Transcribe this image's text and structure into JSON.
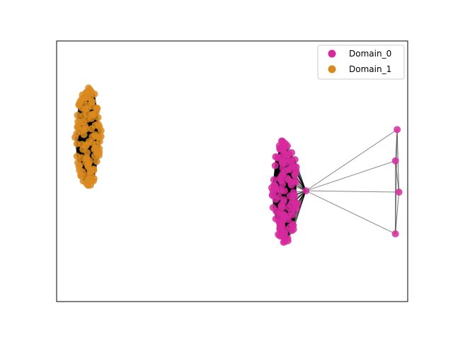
{
  "chart_data": {
    "type": "scatter",
    "title": "",
    "xlabel": "",
    "ylabel": "",
    "axes_ticks_visible": false,
    "grid": false,
    "legend_placement": "top-right",
    "series": [
      {
        "name": "Domain_0",
        "color": "#d62a9c",
        "marker": "circle",
        "clusters": [
          {
            "center": [
              0.3,
              -0.15
            ],
            "spread": [
              0.075,
              0.78
            ],
            "count": 120
          }
        ],
        "hub": [
          0.42,
          -0.15
        ],
        "outliers": [
          [
            0.94,
            0.32
          ],
          [
            0.93,
            0.08
          ],
          [
            0.95,
            -0.16
          ],
          [
            0.93,
            -0.48
          ]
        ],
        "edge_color": "#000000"
      },
      {
        "name": "Domain_1",
        "color": "#d98a1f",
        "marker": "circle",
        "clusters": [
          {
            "center": [
              -0.82,
              0.26
            ],
            "spread": [
              0.075,
              0.75
            ],
            "count": 110
          }
        ],
        "edge_color": "#000000"
      }
    ],
    "xlim": [
      -1.0,
      1.0
    ],
    "ylim": [
      -1.0,
      1.0
    ]
  }
}
